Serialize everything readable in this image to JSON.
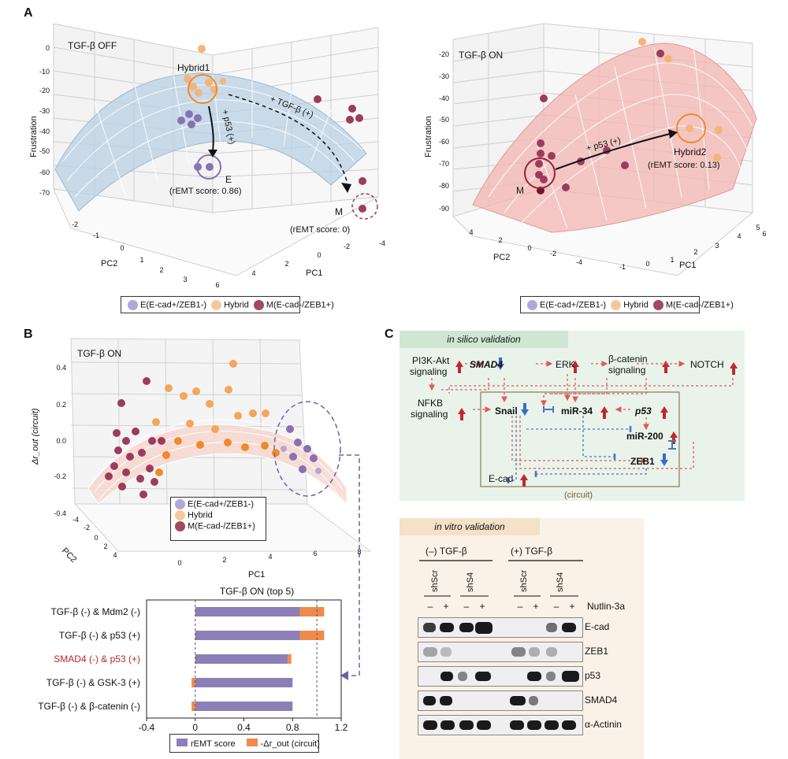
{
  "panelA": {
    "letter": "A",
    "left": {
      "title": "TGF-β OFF",
      "zlabel": "Frustration",
      "xlabel": "PC1",
      "ylabel": "PC2",
      "zticks": [
        "0",
        "-10",
        "-20",
        "-30",
        "-40",
        "-50",
        "-60",
        "-70"
      ],
      "xticks": [
        "6",
        "4",
        "2",
        "0",
        "-2",
        "-4"
      ],
      "yticks": [
        "-2",
        "-1",
        "0",
        "1",
        "2",
        "3"
      ],
      "hybrid_label": "Hybrid1",
      "e_label": "E",
      "e_score": "(rEMT score: 0.86)",
      "m_label": "M",
      "m_score": "(rEMT score: 0)",
      "arrow1": "+ p53 (+)",
      "arrow2": "+ TGF-β (+)"
    },
    "right": {
      "title": "TGF-β ON",
      "zlabel": "Frustration",
      "xlabel": "PC1",
      "ylabel": "PC2",
      "zticks": [
        "-20",
        "-30",
        "-40",
        "-50",
        "-60",
        "-70",
        "-80",
        "-90"
      ],
      "xticks": [
        "-1",
        "0",
        "1",
        "2",
        "3",
        "4",
        "5",
        "6"
      ],
      "yticks": [
        "4",
        "2",
        "0",
        "-2",
        "-4"
      ],
      "m_label": "M",
      "hybrid_label": "Hybrid2",
      "hybrid_score": "(rEMT score: 0.13)",
      "arrow": "+ p53 (+)"
    },
    "legend": {
      "e": "E(E-cad+/ZEB1-)",
      "h": "Hybrid",
      "m": "M(E-cad-/ZEB1+)"
    }
  },
  "panelB": {
    "letter": "B",
    "title": "TGF-β ON",
    "zlabel": "Δr_out (circuit)",
    "xlabel": "PC1",
    "ylabel": "PC2",
    "zticks": [
      "0.4",
      "0.2",
      "0.0",
      "-0.2",
      "-0.4"
    ],
    "xticks": [
      "0",
      "2",
      "4",
      "6",
      "8"
    ],
    "yticks": [
      "-4",
      "-2",
      "0",
      "2",
      "4"
    ],
    "legend": {
      "e": "E(E-cad+/ZEB1-)",
      "h": "Hybrid",
      "m": "M(E-cad-/ZEB1+)"
    }
  },
  "chart_data": {
    "type": "bar",
    "title": "TGF-β ON (top 5)",
    "categories": [
      "TGF-β (-) & Mdm2 (-)",
      "TGF-β (-) & p53 (+)",
      "SMAD4 (-) & p53 (+)",
      "TGF-β (-) & GSK-3 (+)",
      "TGF-β (-) & β-catenin (-)"
    ],
    "highlight_index": 2,
    "series": [
      {
        "name": "rEMT score",
        "values": [
          0.86,
          0.86,
          0.76,
          0.8,
          0.8
        ],
        "color": "#8c7fb8"
      },
      {
        "name": "-Δr_out (circuit)",
        "values": [
          0.2,
          0.2,
          0.03,
          -0.03,
          -0.03
        ],
        "color": "#f08a4b"
      }
    ],
    "xticks": [
      "-0.4",
      "0",
      "0.4",
      "0.8",
      "1.2"
    ],
    "xlim": [
      -0.4,
      1.2
    ],
    "ref_lines": [
      0,
      1.0
    ]
  },
  "panelC": {
    "letter": "C",
    "insilico_title": "in silico validation",
    "circuit_caption": "(circuit)",
    "nodes": {
      "pi3k": "PI3K-Akt signaling",
      "smad4": "SMAD4",
      "erk": "ERK",
      "bcat": "β-catenin signaling",
      "notch": "NOTCH",
      "nfkb": "NFKB signaling",
      "snail": "Snail",
      "mir34": "miR-34",
      "p53": "p53",
      "mir200": "miR-200",
      "zeb1": "ZEB1",
      "ecad": "E-cad"
    },
    "invitro_title": "in vitro validation",
    "cond_minus": "(–) TGF-β",
    "cond_plus": "(+) TGF-β",
    "lanes": [
      "shScr",
      "shS4",
      "shScr",
      "shS4"
    ],
    "nutlin_signs": [
      "–",
      "+",
      "–",
      "+",
      "–",
      "+",
      "–",
      "+"
    ],
    "nutlin_label": "Nutlin-3a",
    "blots": [
      "E-cad",
      "ZEB1",
      "p53",
      "SMAD4",
      "α-Actinin"
    ]
  }
}
